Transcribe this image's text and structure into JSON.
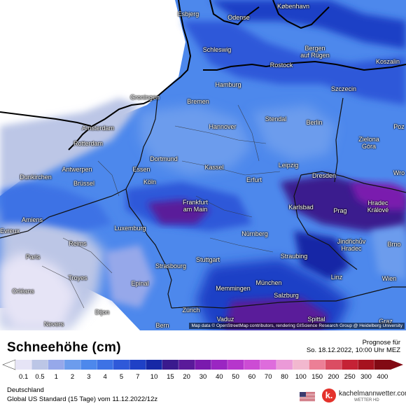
{
  "map": {
    "attribution": "Map data © OpenStreetMap contributors, rendering GIScience Research Group @ Heidelberg University",
    "cities": [
      {
        "name": "Esbjerg"
      },
      {
        "name": "Odense"
      },
      {
        "name": "København"
      },
      {
        "name": "Schleswig"
      },
      {
        "name": "Bergen\nauf Rügen"
      },
      {
        "name": "Rostock"
      },
      {
        "name": "Koszalin"
      },
      {
        "name": "Groningen"
      },
      {
        "name": "Hamburg"
      },
      {
        "name": "Bremen"
      },
      {
        "name": "Szczecin"
      },
      {
        "name": "Amsterdam"
      },
      {
        "name": "Hannover"
      },
      {
        "name": "Stendal"
      },
      {
        "name": "Berlin"
      },
      {
        "name": "Rotterdam"
      },
      {
        "name": "Zielona\nGóra"
      },
      {
        "name": "Poz"
      },
      {
        "name": "Dortmund"
      },
      {
        "name": "Essen"
      },
      {
        "name": "Dunkirchen"
      },
      {
        "name": "Antwerpen"
      },
      {
        "name": "Kassel"
      },
      {
        "name": "Leipzig"
      },
      {
        "name": "Dresden"
      },
      {
        "name": "Wro"
      },
      {
        "name": "Brüssel"
      },
      {
        "name": "Köln"
      },
      {
        "name": "Erfurt"
      },
      {
        "name": "Frankfurt\nam Main"
      },
      {
        "name": "Karlsbad"
      },
      {
        "name": "Prag"
      },
      {
        "name": "Hradec\nKrálové"
      },
      {
        "name": "Amiens"
      },
      {
        "name": "Luxemburg"
      },
      {
        "name": "Nürnberg"
      },
      {
        "name": "Reims"
      },
      {
        "name": "Jindřichův\nHradec"
      },
      {
        "name": "Brno"
      },
      {
        "name": "Paris"
      },
      {
        "name": "Stuttgart"
      },
      {
        "name": "Straubing"
      },
      {
        "name": "Strasbourg"
      },
      {
        "name": "Troyes"
      },
      {
        "name": "Epinal"
      },
      {
        "name": "Memmingen"
      },
      {
        "name": "München"
      },
      {
        "name": "Linz"
      },
      {
        "name": "Wien"
      },
      {
        "name": "Orléans"
      },
      {
        "name": "Salzburg"
      },
      {
        "name": "Dijon"
      },
      {
        "name": "Zürich"
      },
      {
        "name": "Vaduz"
      },
      {
        "name": "Graz"
      },
      {
        "name": "Nevers"
      },
      {
        "name": "Bern"
      },
      {
        "name": "Spittal"
      },
      {
        "name": "Evreux"
      }
    ]
  },
  "legend": {
    "title": "Schneehöhe (cm)",
    "forecast_label": "Prognose für",
    "forecast_date": "So. 18.12.2022, 10:00 Uhr MEZ",
    "ticks": [
      "0.1",
      "0.5",
      "1",
      "2",
      "3",
      "4",
      "5",
      "7",
      "10",
      "15",
      "20",
      "30",
      "40",
      "50",
      "60",
      "70",
      "80",
      "100",
      "150",
      "200",
      "250",
      "300",
      "400"
    ],
    "colors": [
      "#e6e4f6",
      "#bcc6e6",
      "#96a8ea",
      "#6c9ced",
      "#4d88ec",
      "#3d72e5",
      "#2f59d9",
      "#1f41c6",
      "#1628a6",
      "#3a1a8e",
      "#5a1a9a",
      "#7a1aae",
      "#9a26c2",
      "#b636cc",
      "#cc4cd4",
      "#de6cdc",
      "#eb9ad8",
      "#f2b8cf",
      "#ec7f96",
      "#db4d63",
      "#c52235",
      "#a6121f",
      "#820a14"
    ],
    "region": "Deutschland",
    "model": "Global US Standard (15 Tage) vom 11.12.2022/12z",
    "brand_name": "kachelmannwetter.com",
    "brand_sub": "WETTER HD",
    "brand_logo_letter": "k."
  }
}
